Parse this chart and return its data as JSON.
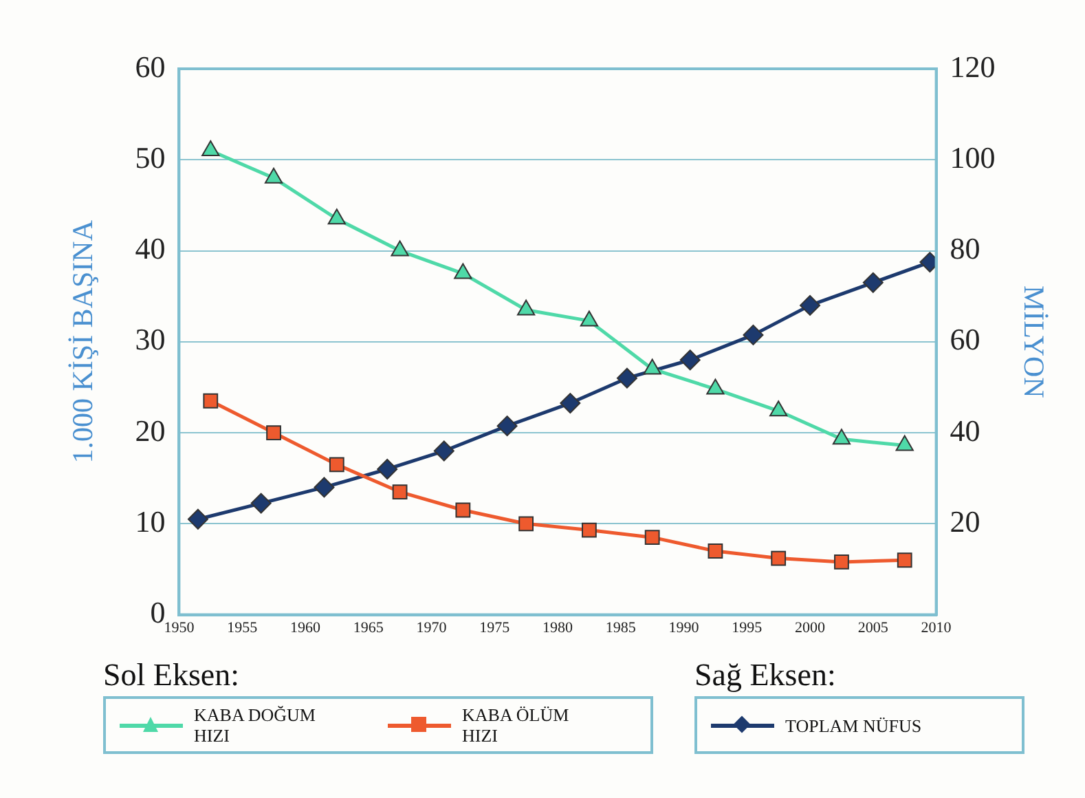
{
  "chart_data": {
    "type": "line",
    "ylabel": "1.000 KİŞİ BAŞINA",
    "y2label": "MİLYON",
    "xlim": [
      1950,
      2010
    ],
    "xticks": [
      1950,
      1955,
      1960,
      1965,
      1970,
      1975,
      1980,
      1985,
      1990,
      1995,
      2000,
      2005,
      2010
    ],
    "ylim": [
      0,
      60
    ],
    "yticks": [
      0,
      10,
      20,
      30,
      40,
      50,
      60
    ],
    "y2lim": [
      0,
      120
    ],
    "y2ticks": [
      20,
      40,
      60,
      80,
      100,
      120
    ],
    "grid": "y",
    "legend": "bottom",
    "line_style": "solid",
    "annotations": [
      "Sol Eksen:",
      "Sağ Eksen:"
    ],
    "series": [
      {
        "name": "KABA DOĞUM HIZI",
        "color": "#4fd9a8",
        "marker": "triangle",
        "x": [
          1952.5,
          1957.5,
          1962.5,
          1967.5,
          1972.5,
          1977.5,
          1982.5,
          1987.5,
          1992.5,
          1997.5,
          2002.5,
          2007.5
        ],
        "values": [
          51,
          48,
          43.5,
          40,
          37.5,
          33.5,
          32.3,
          27,
          24.8,
          22.4,
          19.3,
          18.6
        ]
      },
      {
        "name": "KABA ÖLÜM HIZI",
        "color": "#ee5a2e",
        "marker": "square",
        "x": [
          1952.5,
          1957.5,
          1962.5,
          1967.5,
          1972.5,
          1977.5,
          1982.5,
          1987.5,
          1992.5,
          1997.5,
          2002.5,
          2007.5
        ],
        "values": [
          23.5,
          20,
          16.5,
          13.5,
          11.5,
          10,
          9.3,
          8.5,
          7,
          6.2,
          5.8,
          6
        ]
      },
      {
        "name": "TOPLAM NÜFUS",
        "color": "#1d3a6e",
        "marker": "diamond",
        "axis": "y2",
        "x": [
          1951.5,
          1956.5,
          1961.5,
          1966.5,
          1971,
          1976,
          1981,
          1985.5,
          1990.5,
          1995.5,
          2000,
          2005,
          2009.5
        ],
        "values": [
          21,
          24.5,
          28,
          32,
          36,
          41.5,
          46.5,
          52,
          56,
          61.5,
          68,
          73,
          77.5
        ]
      }
    ]
  }
}
